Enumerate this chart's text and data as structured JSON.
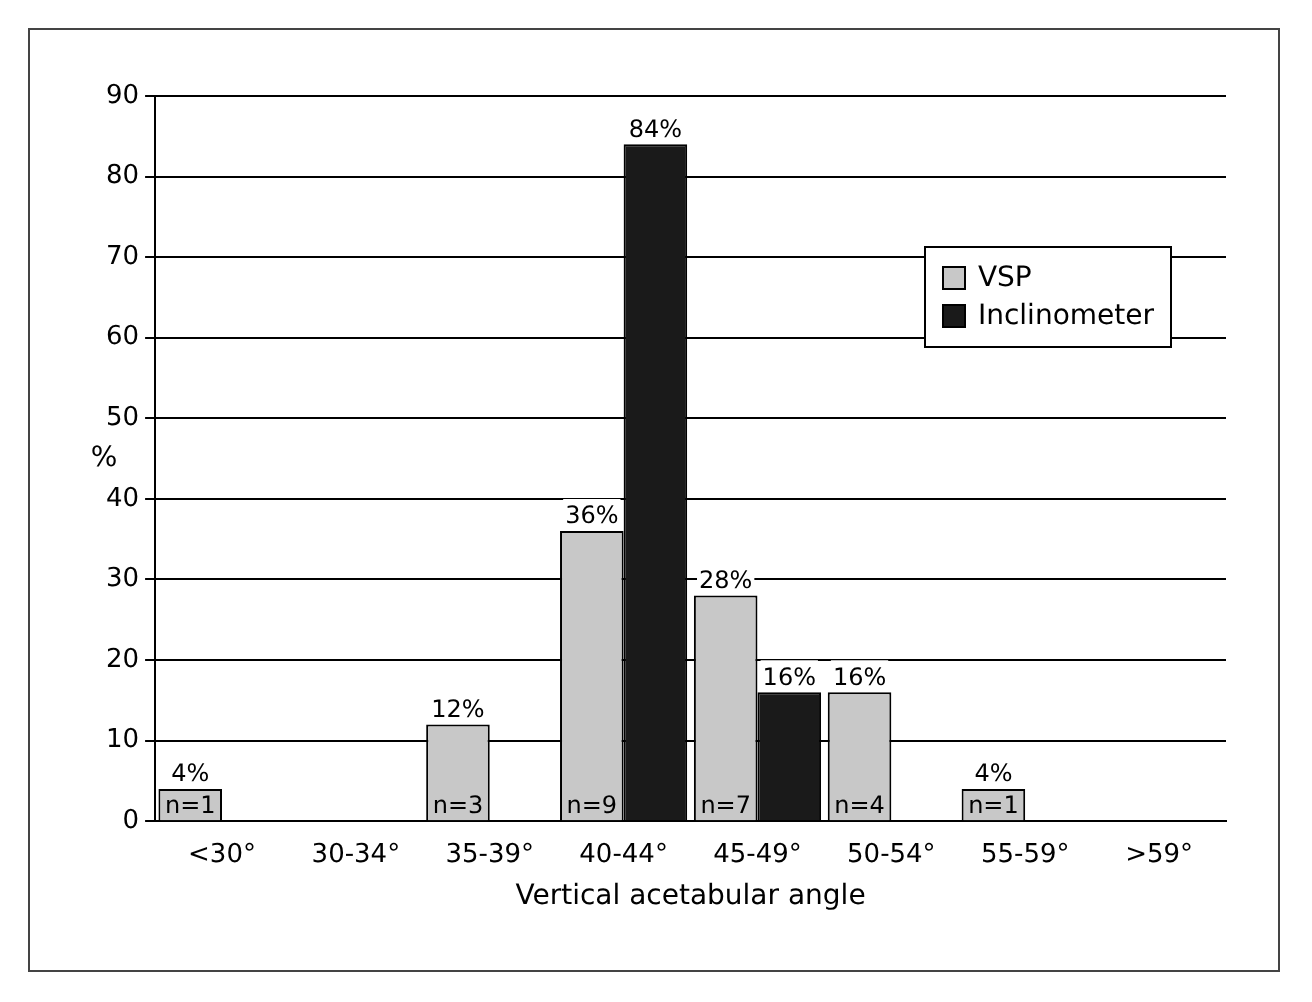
{
  "chart_data": {
    "type": "bar",
    "xlabel": "Vertical acetabular angle",
    "ylabel": "%",
    "categories": [
      "<30°",
      "30-34°",
      "35-39°",
      "40-44°",
      "45-49°",
      "50-54°",
      "55-59°",
      ">59°"
    ],
    "series": [
      {
        "name": "VSP",
        "color": "#c8c8c8",
        "values": [
          4,
          null,
          12,
          36,
          28,
          16,
          4,
          null
        ],
        "value_labels": [
          "4%",
          null,
          "12%",
          "36%",
          "28%",
          "16%",
          "4%",
          null
        ]
      },
      {
        "name": "Inclinometer",
        "color": "#1a1a1a",
        "values": [
          null,
          null,
          null,
          84,
          16,
          null,
          null,
          null
        ],
        "value_labels": [
          null,
          null,
          null,
          "84%",
          "16%",
          null,
          null,
          null
        ]
      }
    ],
    "annotations": [
      {
        "text": "n=1",
        "x": "<30°",
        "y": 0
      },
      {
        "text": "n=3",
        "x": "35-39°",
        "y": 0
      },
      {
        "text": "n=9",
        "x": "40-44°",
        "y": 0
      },
      {
        "text": "n=7",
        "x": "45-49°",
        "y": 0
      },
      {
        "text": "n=4",
        "x": "50-54°",
        "y": 0
      },
      {
        "text": "n=1",
        "x": "55-59°",
        "y": 0
      }
    ],
    "ylim": [
      0,
      90
    ],
    "yticks": [
      0,
      10,
      20,
      30,
      40,
      50,
      60,
      70,
      80,
      90
    ],
    "grid": "y",
    "legend": "top right"
  }
}
